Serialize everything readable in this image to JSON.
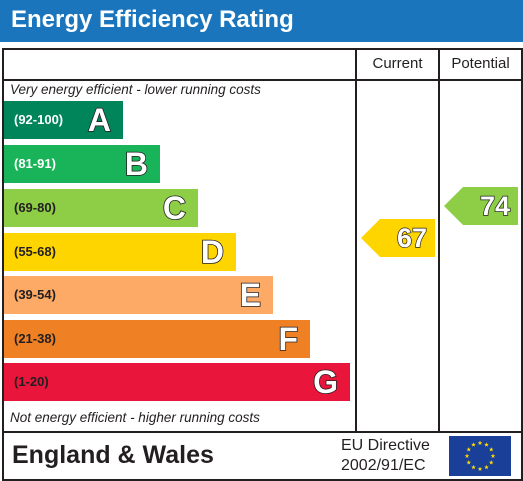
{
  "title": "Energy Efficiency Rating",
  "columns": {
    "current": "Current",
    "potential": "Potential"
  },
  "captions": {
    "top": "Very energy efficient - lower running costs",
    "bottom": "Not energy efficient - higher running costs"
  },
  "bands": [
    {
      "range": "(92-100)",
      "letter": "A",
      "color": "#00855a",
      "range_color": "#ffffff"
    },
    {
      "range": "(81-91)",
      "letter": "B",
      "color": "#19b459",
      "range_color": "#ffffff"
    },
    {
      "range": "(69-80)",
      "letter": "C",
      "color": "#8dce46",
      "range_color": "#231f20"
    },
    {
      "range": "(55-68)",
      "letter": "D",
      "color": "#ffd500",
      "range_color": "#231f20"
    },
    {
      "range": "(39-54)",
      "letter": "E",
      "color": "#fcaa65",
      "range_color": "#231f20"
    },
    {
      "range": "(21-38)",
      "letter": "F",
      "color": "#ef8023",
      "range_color": "#231f20"
    },
    {
      "range": "(1-20)",
      "letter": "G",
      "color": "#e9153b",
      "range_color": "#231f20"
    }
  ],
  "ratings": {
    "current": {
      "value": "67",
      "color": "#ffd500"
    },
    "potential": {
      "value": "74",
      "color": "#8dce46"
    }
  },
  "footer": {
    "region": "England & Wales",
    "directive_line1": "EU Directive",
    "directive_line2": "2002/91/EC",
    "flag_icon": "eu-flag-icon"
  },
  "colors": {
    "title_bar": "#1a75bc",
    "border": "#231f20"
  }
}
